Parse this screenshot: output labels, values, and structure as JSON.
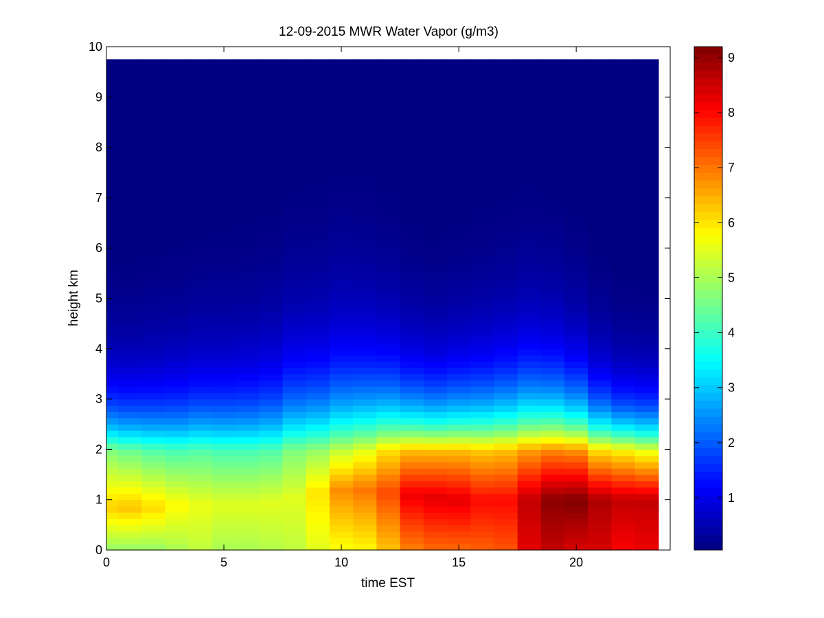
{
  "chart_data": {
    "type": "heatmap",
    "title": "12-09-2015 MWR Water Vapor (g/m3)",
    "xlabel": "time EST",
    "ylabel": "height km",
    "xlim": [
      0,
      24
    ],
    "ylim": [
      0,
      10
    ],
    "x_ticks": [
      0,
      5,
      10,
      15,
      20
    ],
    "y_ticks": [
      0,
      1,
      2,
      3,
      4,
      5,
      6,
      7,
      8,
      9,
      10
    ],
    "data_extent": {
      "x": [
        0,
        23.5
      ],
      "y": [
        0,
        9.75
      ]
    },
    "colormap": "jet",
    "color_range": [
      0.05,
      9.2
    ],
    "colorbar_ticks": [
      1,
      2,
      3,
      4,
      5,
      6,
      7,
      8,
      9
    ],
    "colorbar_position": "right",
    "grid": false,
    "x": [
      0.5,
      1.5,
      2.5,
      3.5,
      4.5,
      5.5,
      6.5,
      7.5,
      8.5,
      9.5,
      10.5,
      11.5,
      12.5,
      13.5,
      14.5,
      15.5,
      16.5,
      17.5,
      18.5,
      19.5,
      20.5,
      21.5,
      22.5,
      23.5
    ],
    "surface": [
      4.8,
      4.8,
      4.8,
      5.0,
      5.2,
      5.0,
      5.0,
      5.1,
      5.2,
      5.5,
      5.7,
      5.8,
      6.3,
      6.9,
      7.1,
      7.1,
      7.2,
      7.3,
      8.3,
      8.6,
      8.4,
      8.4,
      8.1,
      8.2
    ],
    "low_max": [
      6.2,
      6.3,
      6.1,
      5.8,
      5.6,
      5.5,
      5.5,
      5.5,
      5.5,
      6.0,
      6.8,
      7.0,
      7.4,
      8.2,
      8.3,
      8.3,
      8.0,
      8.0,
      8.6,
      9.1,
      9.2,
      8.8,
      8.6,
      8.6
    ],
    "peak_height": [
      0.85,
      0.85,
      0.85,
      0.9,
      0.9,
      0.9,
      0.9,
      0.95,
      1.05,
      1.15,
      1.2,
      1.2,
      1.15,
      1.1,
      1.05,
      1.0,
      1.0,
      1.0,
      1.0,
      1.0,
      1.0,
      1.0,
      1.0,
      1.0
    ],
    "mid_2km": [
      4.6,
      4.4,
      4.2,
      4.1,
      4.2,
      4.1,
      4.1,
      4.2,
      4.6,
      4.8,
      5.2,
      5.5,
      6.0,
      6.3,
      6.3,
      6.3,
      6.2,
      6.3,
      6.6,
      6.8,
      6.7,
      6.0,
      5.8,
      5.5
    ],
    "scale_height": [
      0.95,
      0.95,
      1.0,
      1.05,
      1.1,
      1.12,
      1.15,
      1.2,
      1.3,
      1.3,
      1.35,
      1.3,
      1.2,
      1.05,
      1.0,
      1.05,
      1.1,
      1.15,
      1.2,
      1.15,
      1.05,
      0.9,
      0.8,
      0.8
    ]
  }
}
